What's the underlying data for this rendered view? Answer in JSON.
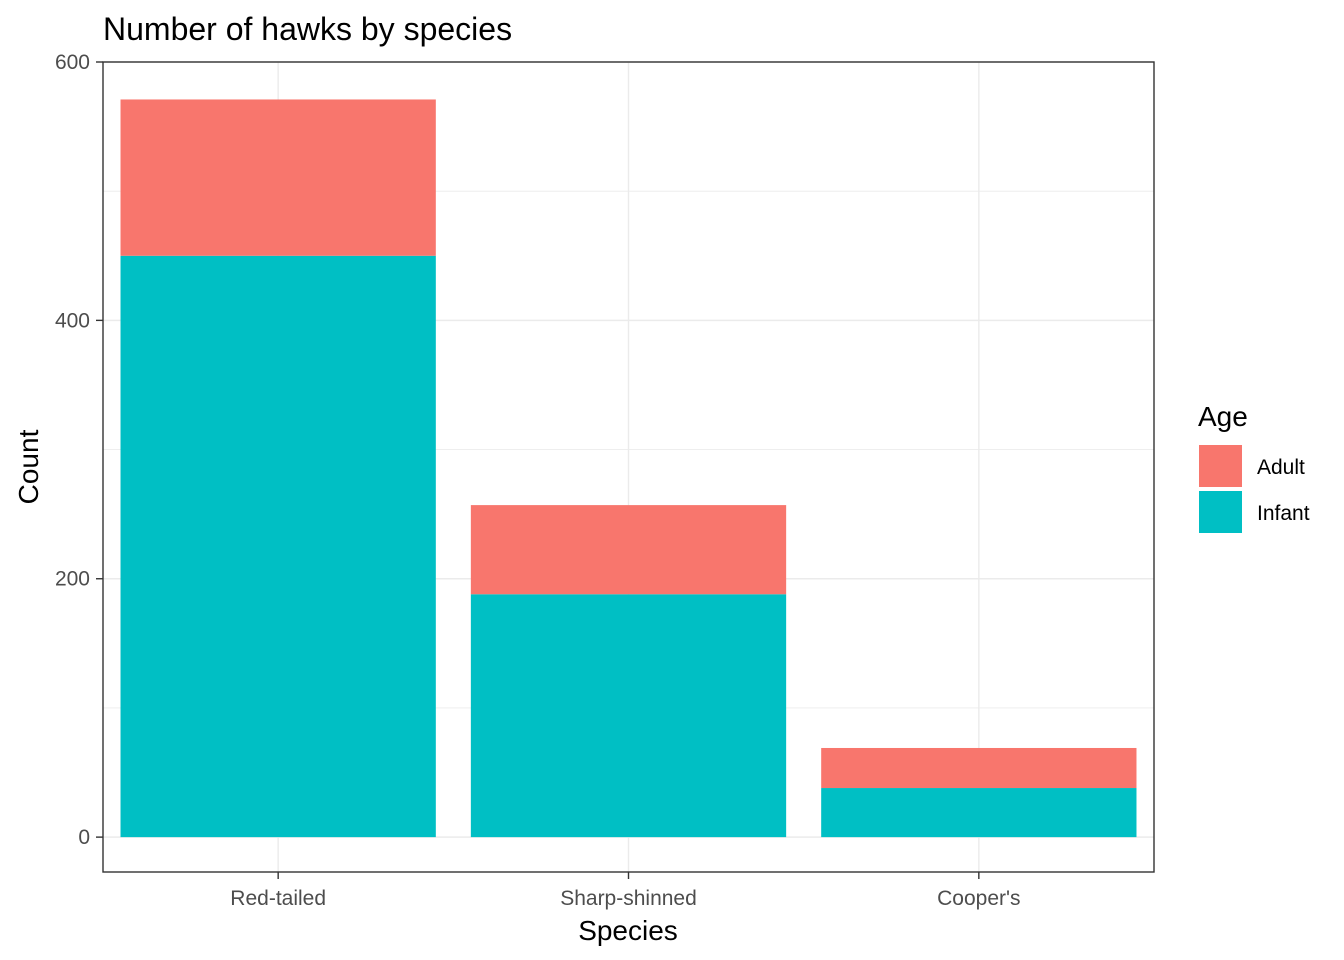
{
  "chart_data": {
    "type": "bar",
    "stacked": true,
    "title": "Number of hawks by species",
    "xlabel": "Species",
    "ylabel": "Count",
    "categories": [
      "Red-tailed",
      "Sharp-shinned",
      "Cooper's"
    ],
    "series": [
      {
        "name": "Infant",
        "color": "#00bfc4",
        "values": [
          450,
          188,
          38
        ]
      },
      {
        "name": "Adult",
        "color": "#f8766d",
        "values": [
          121,
          69,
          31
        ]
      }
    ],
    "ylim": [
      -27,
      600
    ],
    "yticks": [
      0,
      200,
      400,
      600
    ],
    "ytick_labels": [
      "0",
      "200",
      "400",
      "600"
    ],
    "grid": true,
    "legend": {
      "title": "Age",
      "position": "right",
      "entries": [
        {
          "label": "Adult",
          "color": "#f8766d"
        },
        {
          "label": "Infant",
          "color": "#00bfc4"
        }
      ]
    }
  }
}
